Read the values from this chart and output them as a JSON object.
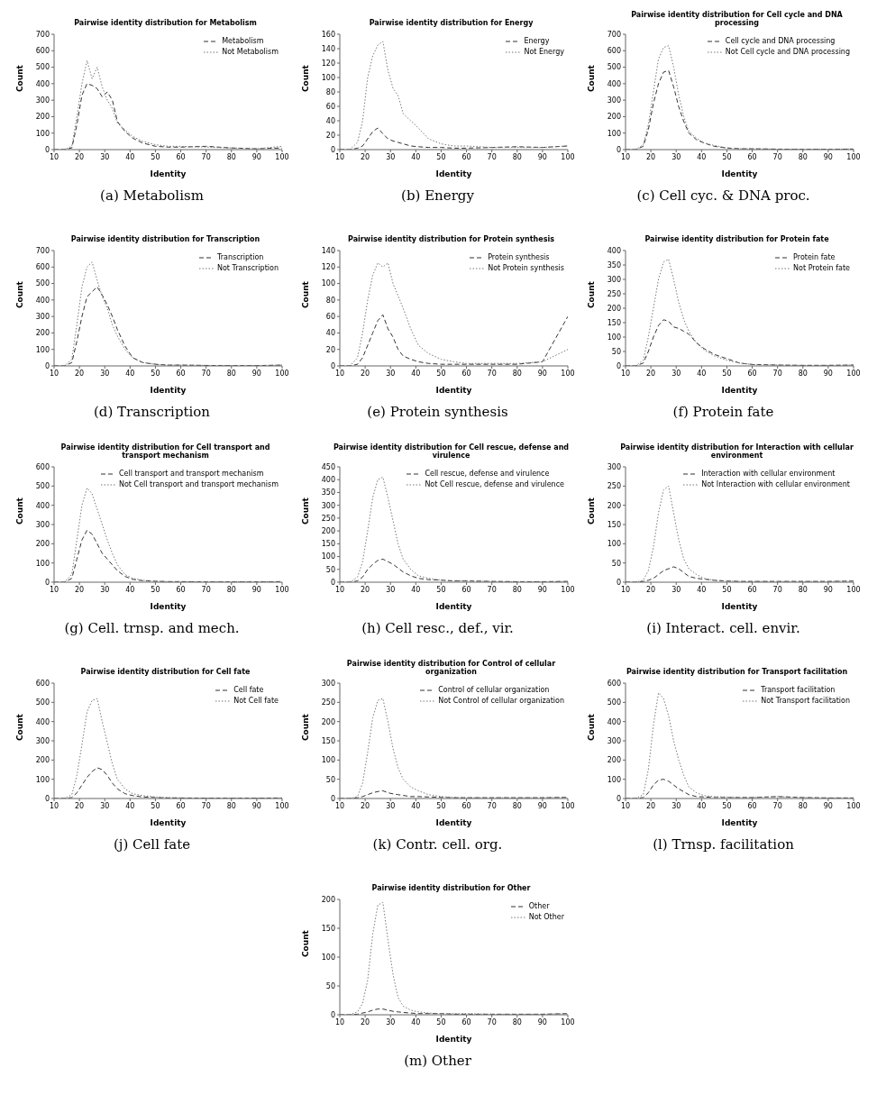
{
  "chart_data": [
    {
      "type": "line",
      "title": "Pairwise identity distribution for Metabolism",
      "xlabel": "Identity",
      "ylabel": "Count",
      "annotations": [
        "(a) Metabolism"
      ],
      "legend": "top right",
      "marker": "none",
      "x": [
        10,
        14,
        17,
        19,
        21,
        23,
        25,
        27,
        29,
        31,
        33,
        35,
        38,
        41,
        45,
        50,
        55,
        60,
        70,
        80,
        90,
        100
      ],
      "xlim": [
        10,
        100
      ],
      "xticks": [
        10,
        20,
        30,
        40,
        50,
        60,
        70,
        80,
        90,
        100
      ],
      "ylim": [
        0,
        700
      ],
      "yticks": [
        0,
        100,
        200,
        300,
        400,
        500,
        600,
        700
      ],
      "series": [
        {
          "name": "Metabolism",
          "color": "#333333",
          "line_style": "dashed",
          "values": [
            0,
            0,
            10,
            150,
            330,
            400,
            390,
            370,
            320,
            350,
            300,
            170,
            110,
            70,
            40,
            20,
            15,
            15,
            20,
            10,
            5,
            10
          ]
        },
        {
          "name": "Not Metabolism",
          "color": "#777777",
          "line_style": "dotted",
          "values": [
            0,
            0,
            20,
            200,
            400,
            540,
            430,
            500,
            380,
            300,
            250,
            160,
            120,
            80,
            50,
            30,
            20,
            20,
            15,
            10,
            5,
            20
          ]
        }
      ]
    },
    {
      "type": "line",
      "title": "Pairwise identity distribution for Energy",
      "xlabel": "Identity",
      "ylabel": "Count",
      "annotations": [
        "(b) Energy"
      ],
      "legend": "top right",
      "marker": "none",
      "x": [
        10,
        14,
        17,
        19,
        21,
        23,
        25,
        27,
        29,
        31,
        33,
        35,
        38,
        41,
        45,
        50,
        55,
        60,
        70,
        80,
        90,
        100
      ],
      "xlim": [
        10,
        100
      ],
      "xticks": [
        10,
        20,
        30,
        40,
        50,
        60,
        70,
        80,
        90,
        100
      ],
      "ylim": [
        0,
        160
      ],
      "yticks": [
        0,
        20,
        40,
        60,
        80,
        100,
        120,
        140,
        160
      ],
      "series": [
        {
          "name": "Energy",
          "color": "#333333",
          "line_style": "dashed",
          "values": [
            0,
            0,
            2,
            5,
            15,
            25,
            30,
            22,
            15,
            12,
            10,
            8,
            5,
            4,
            3,
            3,
            2,
            2,
            3,
            4,
            3,
            5
          ]
        },
        {
          "name": "Not Energy",
          "color": "#777777",
          "line_style": "dotted",
          "values": [
            0,
            0,
            10,
            40,
            100,
            130,
            145,
            150,
            110,
            85,
            75,
            50,
            40,
            30,
            15,
            8,
            5,
            5,
            3,
            3,
            3,
            5
          ]
        }
      ]
    },
    {
      "type": "line",
      "title": "Pairwise identity distribution for Cell cycle and DNA processing",
      "xlabel": "Identity",
      "ylabel": "Count",
      "annotations": [
        "(c) Cell cyc. & DNA proc."
      ],
      "legend": "top right",
      "marker": "none",
      "x": [
        10,
        14,
        17,
        19,
        21,
        23,
        25,
        27,
        29,
        31,
        33,
        35,
        38,
        41,
        45,
        50,
        55,
        60,
        70,
        80,
        90,
        100
      ],
      "xlim": [
        10,
        100
      ],
      "xticks": [
        10,
        20,
        30,
        40,
        50,
        60,
        70,
        80,
        90,
        100
      ],
      "ylim": [
        0,
        700
      ],
      "yticks": [
        0,
        100,
        200,
        300,
        400,
        500,
        600,
        700
      ],
      "series": [
        {
          "name": "Cell cycle and DNA processing",
          "color": "#333333",
          "line_style": "dashed",
          "values": [
            0,
            0,
            20,
            120,
            280,
            400,
            470,
            480,
            380,
            260,
            170,
            100,
            60,
            40,
            20,
            10,
            5,
            5,
            3,
            2,
            2,
            3
          ]
        },
        {
          "name": "Not Cell cycle and DNA processing",
          "color": "#777777",
          "line_style": "dotted",
          "values": [
            0,
            0,
            30,
            150,
            350,
            550,
            620,
            630,
            500,
            330,
            200,
            110,
            70,
            40,
            25,
            10,
            5,
            5,
            3,
            2,
            2,
            5
          ]
        }
      ]
    },
    {
      "type": "line",
      "title": "Pairwise identity distribution for Transcription",
      "xlabel": "Identity",
      "ylabel": "Count",
      "annotations": [
        "(d) Transcription"
      ],
      "legend": "top right",
      "marker": "none",
      "x": [
        10,
        14,
        17,
        19,
        21,
        23,
        25,
        27,
        29,
        31,
        33,
        35,
        38,
        41,
        45,
        50,
        55,
        60,
        70,
        80,
        90,
        100
      ],
      "xlim": [
        10,
        100
      ],
      "xticks": [
        10,
        20,
        30,
        40,
        50,
        60,
        70,
        80,
        90,
        100
      ],
      "ylim": [
        0,
        700
      ],
      "yticks": [
        0,
        100,
        200,
        300,
        400,
        500,
        600,
        700
      ],
      "series": [
        {
          "name": "Transcription",
          "color": "#333333",
          "line_style": "dashed",
          "values": [
            0,
            0,
            20,
            150,
            300,
            420,
            450,
            480,
            430,
            370,
            300,
            220,
            120,
            50,
            20,
            10,
            5,
            5,
            3,
            2,
            2,
            5
          ]
        },
        {
          "name": "Not Transcription",
          "color": "#777777",
          "line_style": "dotted",
          "values": [
            0,
            0,
            40,
            250,
            480,
            600,
            630,
            520,
            420,
            350,
            250,
            180,
            100,
            50,
            20,
            10,
            5,
            5,
            3,
            2,
            2,
            5
          ]
        }
      ]
    },
    {
      "type": "line",
      "title": "Pairwise identity distribution for Protein synthesis",
      "xlabel": "Identity",
      "ylabel": "Count",
      "annotations": [
        "(e) Protein synthesis"
      ],
      "legend": "top right",
      "marker": "none",
      "x": [
        10,
        14,
        17,
        19,
        21,
        23,
        25,
        27,
        29,
        31,
        33,
        35,
        38,
        41,
        45,
        50,
        55,
        60,
        70,
        80,
        90,
        100
      ],
      "xlim": [
        10,
        100
      ],
      "xticks": [
        10,
        20,
        30,
        40,
        50,
        60,
        70,
        80,
        90,
        100
      ],
      "ylim": [
        0,
        140
      ],
      "yticks": [
        0,
        20,
        40,
        60,
        80,
        100,
        120,
        140
      ],
      "series": [
        {
          "name": "Protein synthesis",
          "color": "#333333",
          "line_style": "dashed",
          "values": [
            0,
            0,
            2,
            10,
            25,
            40,
            55,
            62,
            45,
            35,
            20,
            12,
            8,
            5,
            3,
            2,
            2,
            2,
            2,
            2,
            5,
            60
          ]
        },
        {
          "name": "Not Protein synthesis",
          "color": "#777777",
          "line_style": "dotted",
          "values": [
            0,
            0,
            10,
            40,
            80,
            110,
            125,
            120,
            125,
            100,
            85,
            70,
            45,
            25,
            15,
            8,
            5,
            3,
            3,
            3,
            5,
            20
          ]
        }
      ]
    },
    {
      "type": "line",
      "title": "Pairwise identity distribution for Protein fate",
      "xlabel": "Identity",
      "ylabel": "Count",
      "annotations": [
        "(f) Protein fate"
      ],
      "legend": "top right",
      "marker": "none",
      "x": [
        10,
        14,
        17,
        19,
        21,
        23,
        25,
        27,
        29,
        31,
        33,
        35,
        38,
        41,
        45,
        50,
        55,
        60,
        70,
        80,
        90,
        100
      ],
      "xlim": [
        10,
        100
      ],
      "xticks": [
        10,
        20,
        30,
        40,
        50,
        60,
        70,
        80,
        90,
        100
      ],
      "ylim": [
        0,
        400
      ],
      "yticks": [
        0,
        50,
        100,
        150,
        200,
        250,
        300,
        350,
        400
      ],
      "series": [
        {
          "name": "Protein fate",
          "color": "#333333",
          "line_style": "dashed",
          "values": [
            0,
            0,
            10,
            50,
            100,
            140,
            160,
            155,
            135,
            130,
            120,
            110,
            80,
            60,
            40,
            25,
            10,
            5,
            3,
            2,
            2,
            3
          ]
        },
        {
          "name": "Not Protein fate",
          "color": "#777777",
          "line_style": "dotted",
          "values": [
            0,
            0,
            20,
            100,
            200,
            300,
            360,
            370,
            300,
            220,
            160,
            120,
            80,
            55,
            35,
            20,
            10,
            5,
            3,
            2,
            2,
            3
          ]
        }
      ]
    },
    {
      "type": "line",
      "title": "Pairwise identity distribution for Cell transport and transport mechanism",
      "xlabel": "Identity",
      "ylabel": "Count",
      "annotations": [
        "(g) Cell. trnsp. and mech."
      ],
      "legend": "top right",
      "marker": "none",
      "x": [
        10,
        14,
        17,
        19,
        21,
        23,
        25,
        27,
        29,
        31,
        33,
        35,
        38,
        41,
        45,
        50,
        55,
        60,
        70,
        80,
        90,
        100
      ],
      "xlim": [
        10,
        100
      ],
      "xticks": [
        10,
        20,
        30,
        40,
        50,
        60,
        70,
        80,
        90,
        100
      ],
      "ylim": [
        0,
        600
      ],
      "yticks": [
        0,
        100,
        200,
        300,
        400,
        500,
        600
      ],
      "series": [
        {
          "name": "Cell transport and transport mechanism",
          "color": "#333333",
          "line_style": "dashed",
          "values": [
            0,
            0,
            20,
            120,
            220,
            270,
            250,
            200,
            150,
            120,
            90,
            60,
            30,
            15,
            8,
            5,
            3,
            3,
            2,
            2,
            2,
            3
          ]
        },
        {
          "name": "Not Cell transport and transport mechanism",
          "color": "#777777",
          "line_style": "dotted",
          "values": [
            0,
            0,
            40,
            220,
            400,
            490,
            460,
            380,
            300,
            220,
            150,
            90,
            40,
            20,
            10,
            5,
            3,
            3,
            2,
            2,
            2,
            3
          ]
        }
      ]
    },
    {
      "type": "line",
      "title": "Pairwise identity distribution for Cell rescue, defense and virulence",
      "xlabel": "Identity",
      "ylabel": "Count",
      "annotations": [
        "(h) Cell resc., def., vir."
      ],
      "legend": "top right",
      "marker": "none",
      "x": [
        10,
        14,
        17,
        19,
        21,
        23,
        25,
        27,
        29,
        31,
        33,
        35,
        38,
        41,
        45,
        50,
        55,
        60,
        70,
        80,
        90,
        100
      ],
      "xlim": [
        10,
        100
      ],
      "xticks": [
        10,
        20,
        30,
        40,
        50,
        60,
        70,
        80,
        90,
        100
      ],
      "ylim": [
        0,
        450
      ],
      "yticks": [
        0,
        50,
        100,
        150,
        200,
        250,
        300,
        350,
        400,
        450
      ],
      "series": [
        {
          "name": "Cell rescue, defense and virulence",
          "color": "#333333",
          "line_style": "dashed",
          "values": [
            0,
            0,
            5,
            20,
            50,
            70,
            85,
            90,
            80,
            70,
            55,
            40,
            25,
            15,
            10,
            8,
            5,
            5,
            3,
            2,
            2,
            3
          ]
        },
        {
          "name": "Not Cell rescue, defense and virulence",
          "color": "#777777",
          "line_style": "dotted",
          "values": [
            0,
            0,
            20,
            80,
            200,
            330,
            400,
            410,
            330,
            240,
            150,
            90,
            50,
            25,
            15,
            8,
            5,
            5,
            3,
            2,
            2,
            3
          ]
        }
      ]
    },
    {
      "type": "line",
      "title": "Pairwise identity distribution for Interaction with cellular environment",
      "xlabel": "Identity",
      "ylabel": "Count",
      "annotations": [
        "(i) Interact. cell. envir."
      ],
      "legend": "top right",
      "marker": "none",
      "x": [
        10,
        14,
        17,
        19,
        21,
        23,
        25,
        27,
        29,
        31,
        33,
        35,
        38,
        41,
        45,
        50,
        55,
        60,
        70,
        80,
        90,
        100
      ],
      "xlim": [
        10,
        100
      ],
      "xticks": [
        10,
        20,
        30,
        40,
        50,
        60,
        70,
        80,
        90,
        100
      ],
      "ylim": [
        0,
        300
      ],
      "yticks": [
        0,
        50,
        100,
        150,
        200,
        250,
        300
      ],
      "series": [
        {
          "name": "Interaction with cellular environment",
          "color": "#333333",
          "line_style": "dashed",
          "values": [
            0,
            0,
            2,
            5,
            10,
            20,
            30,
            35,
            40,
            35,
            25,
            15,
            10,
            8,
            5,
            3,
            2,
            2,
            2,
            2,
            2,
            3
          ]
        },
        {
          "name": "Not Interaction with cellular environment",
          "color": "#777777",
          "line_style": "dotted",
          "values": [
            0,
            0,
            5,
            30,
            90,
            180,
            240,
            250,
            180,
            110,
            60,
            35,
            20,
            10,
            5,
            3,
            2,
            2,
            2,
            2,
            2,
            3
          ]
        }
      ]
    },
    {
      "type": "line",
      "title": "Pairwise identity distribution for Cell fate",
      "xlabel": "Identity",
      "ylabel": "Count",
      "annotations": [
        "(j) Cell fate"
      ],
      "legend": "top right",
      "marker": "none",
      "x": [
        10,
        14,
        17,
        19,
        21,
        23,
        25,
        27,
        29,
        31,
        33,
        35,
        38,
        41,
        45,
        50,
        55,
        60,
        70,
        80,
        90,
        100
      ],
      "xlim": [
        10,
        100
      ],
      "xticks": [
        10,
        20,
        30,
        40,
        50,
        60,
        70,
        80,
        90,
        100
      ],
      "ylim": [
        0,
        600
      ],
      "yticks": [
        0,
        100,
        200,
        300,
        400,
        500,
        600
      ],
      "series": [
        {
          "name": "Cell fate",
          "color": "#333333",
          "line_style": "dashed",
          "values": [
            0,
            0,
            5,
            30,
            70,
            110,
            140,
            160,
            150,
            120,
            80,
            50,
            25,
            15,
            8,
            5,
            3,
            3,
            2,
            2,
            2,
            3
          ]
        },
        {
          "name": "Not Cell fate",
          "color": "#777777",
          "line_style": "dotted",
          "values": [
            0,
            0,
            20,
            120,
            280,
            450,
            510,
            520,
            400,
            290,
            180,
            100,
            50,
            25,
            15,
            8,
            5,
            3,
            2,
            2,
            2,
            3
          ]
        }
      ]
    },
    {
      "type": "line",
      "title": "Pairwise identity distribution for Control of cellular organization",
      "xlabel": "Identity",
      "ylabel": "Count",
      "annotations": [
        "(k) Contr. cell. org."
      ],
      "legend": "top right",
      "marker": "none",
      "x": [
        10,
        14,
        17,
        19,
        21,
        23,
        25,
        27,
        29,
        31,
        33,
        35,
        38,
        41,
        45,
        50,
        55,
        60,
        70,
        80,
        90,
        100
      ],
      "xlim": [
        10,
        100
      ],
      "xticks": [
        10,
        20,
        30,
        40,
        50,
        60,
        70,
        80,
        90,
        100
      ],
      "ylim": [
        0,
        300
      ],
      "yticks": [
        0,
        50,
        100,
        150,
        200,
        250,
        300
      ],
      "series": [
        {
          "name": "Control of cellular organization",
          "color": "#333333",
          "line_style": "dashed",
          "values": [
            0,
            0,
            2,
            5,
            10,
            15,
            18,
            20,
            15,
            12,
            10,
            8,
            5,
            5,
            4,
            3,
            2,
            2,
            2,
            2,
            2,
            3
          ]
        },
        {
          "name": "Not Control of cellular organization",
          "color": "#777777",
          "line_style": "dotted",
          "values": [
            0,
            0,
            5,
            40,
            120,
            210,
            255,
            260,
            200,
            130,
            80,
            50,
            30,
            20,
            10,
            5,
            3,
            2,
            2,
            2,
            2,
            3
          ]
        }
      ]
    },
    {
      "type": "line",
      "title": "Pairwise identity distribution for Transport facilitation",
      "xlabel": "Identity",
      "ylabel": "Count",
      "annotations": [
        "(l) Trnsp. facilitation"
      ],
      "legend": "top right",
      "marker": "none",
      "x": [
        10,
        14,
        17,
        19,
        21,
        23,
        25,
        27,
        29,
        31,
        33,
        35,
        38,
        41,
        45,
        50,
        55,
        60,
        70,
        80,
        90,
        100
      ],
      "xlim": [
        10,
        100
      ],
      "xticks": [
        10,
        20,
        30,
        40,
        50,
        60,
        70,
        80,
        90,
        100
      ],
      "ylim": [
        0,
        600
      ],
      "yticks": [
        0,
        100,
        200,
        300,
        400,
        500,
        600
      ],
      "series": [
        {
          "name": "Transport facilitation",
          "color": "#333333",
          "line_style": "dashed",
          "values": [
            0,
            0,
            5,
            30,
            70,
            95,
            100,
            90,
            70,
            50,
            35,
            20,
            10,
            8,
            5,
            5,
            5,
            5,
            10,
            5,
            3,
            3
          ]
        },
        {
          "name": "Not Transport facilitation",
          "color": "#777777",
          "line_style": "dotted",
          "values": [
            0,
            0,
            20,
            150,
            380,
            550,
            520,
            430,
            300,
            200,
            120,
            60,
            30,
            15,
            10,
            8,
            5,
            5,
            10,
            5,
            3,
            3
          ]
        }
      ]
    },
    {
      "type": "line",
      "title": "Pairwise identity distribution for Other",
      "xlabel": "Identity",
      "ylabel": "Count",
      "annotations": [
        "(m) Other"
      ],
      "legend": "top right",
      "marker": "none",
      "x": [
        10,
        14,
        17,
        19,
        21,
        23,
        25,
        27,
        29,
        31,
        33,
        35,
        38,
        41,
        45,
        50,
        55,
        60,
        70,
        80,
        90,
        100
      ],
      "xlim": [
        10,
        100
      ],
      "xticks": [
        10,
        20,
        30,
        40,
        50,
        60,
        70,
        80,
        90,
        100
      ],
      "ylim": [
        0,
        200
      ],
      "yticks": [
        0,
        50,
        100,
        150,
        200
      ],
      "series": [
        {
          "name": "Other",
          "color": "#333333",
          "line_style": "dashed",
          "values": [
            0,
            0,
            1,
            3,
            5,
            8,
            10,
            10,
            8,
            6,
            5,
            4,
            3,
            2,
            2,
            2,
            1,
            1,
            1,
            1,
            1,
            2
          ]
        },
        {
          "name": "Not Other",
          "color": "#777777",
          "line_style": "dotted",
          "values": [
            0,
            0,
            5,
            20,
            60,
            140,
            190,
            195,
            130,
            70,
            30,
            15,
            8,
            5,
            3,
            2,
            2,
            2,
            1,
            1,
            1,
            2
          ]
        }
      ]
    }
  ]
}
